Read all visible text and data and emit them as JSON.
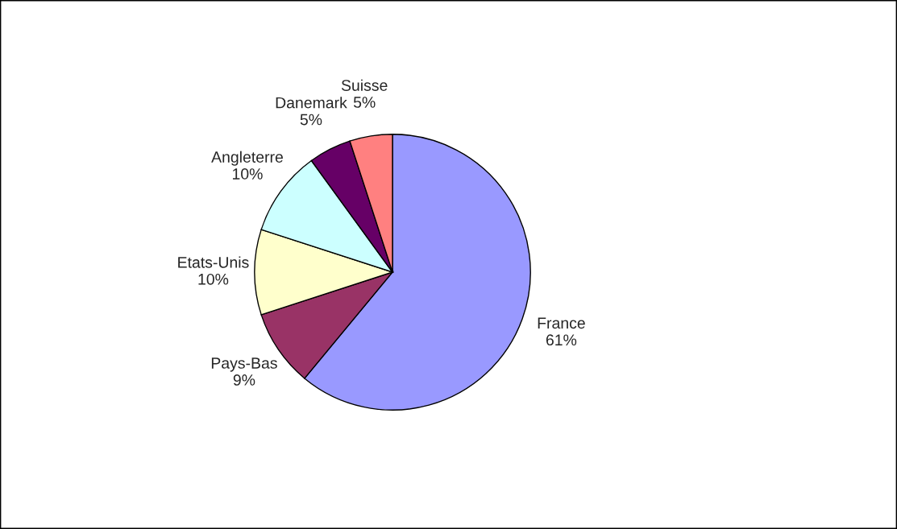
{
  "chart_data": {
    "type": "pie",
    "categories": [
      "France",
      "Pays-Bas",
      "Etats-Unis",
      "Angleterre",
      "Danemark",
      "Suisse"
    ],
    "values": [
      61,
      9,
      10,
      10,
      5,
      5
    ],
    "value_labels": [
      "61%",
      "9%",
      "10%",
      "10%",
      "5%",
      "5%"
    ],
    "colors": [
      "#9999ff",
      "#993366",
      "#ffffcc",
      "#ccffff",
      "#660066",
      "#ff8080"
    ],
    "legend": false
  }
}
